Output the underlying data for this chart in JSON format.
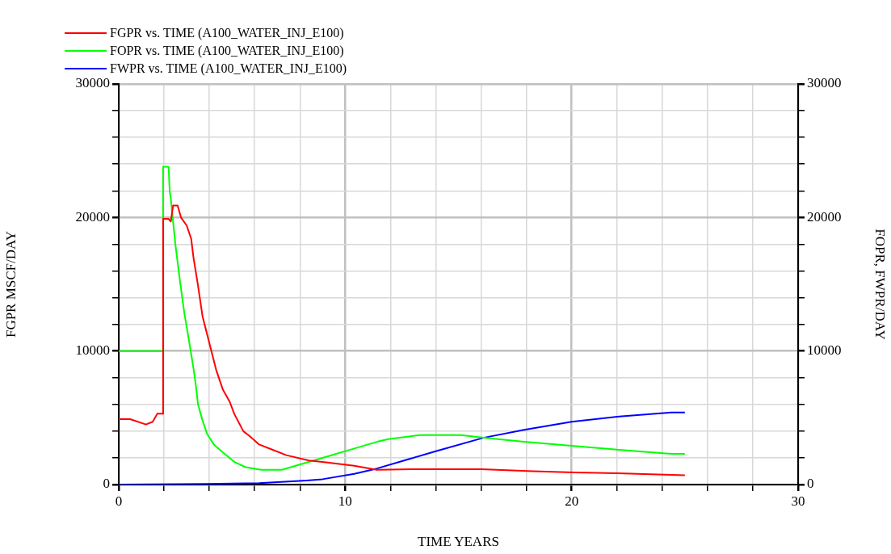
{
  "chart_data": {
    "type": "line",
    "xlabel": "TIME YEARS",
    "ylabel": "FGPR MSCF/DAY",
    "y2label": "FOPR, FWPR/DAY",
    "xlim": [
      0,
      30
    ],
    "xticks": [
      0,
      {
        "value": 2,
        "label": null
      },
      {
        "value": 4,
        "label": null
      },
      {
        "value": 6,
        "label": null
      },
      {
        "value": 8,
        "label": null
      },
      10,
      {
        "value": 12,
        "label": null
      },
      {
        "value": 14,
        "label": null
      },
      {
        "value": 16,
        "label": null
      },
      {
        "value": 18,
        "label": null
      },
      20,
      {
        "value": 22,
        "label": null
      },
      {
        "value": 24,
        "label": null
      },
      {
        "value": 26,
        "label": null
      },
      {
        "value": 28,
        "label": null
      },
      30
    ],
    "ylim": [
      0,
      30000
    ],
    "yticks": [
      0,
      {
        "value": 2000,
        "label": null
      },
      {
        "value": 4000,
        "label": null
      },
      {
        "value": 6000,
        "label": null
      },
      {
        "value": 8000,
        "label": null
      },
      10000,
      {
        "value": 12000,
        "label": null
      },
      {
        "value": 14000,
        "label": null
      },
      {
        "value": 16000,
        "label": null
      },
      {
        "value": 18000,
        "label": null
      },
      20000,
      {
        "value": 22000,
        "label": null
      },
      {
        "value": 24000,
        "label": null
      },
      {
        "value": 26000,
        "label": null
      },
      {
        "value": 28000,
        "label": null
      },
      30000
    ],
    "y2lim": [
      0,
      30000
    ],
    "y2ticks": [
      0,
      {
        "value": 2000,
        "label": null
      },
      {
        "value": 4000,
        "label": null
      },
      {
        "value": 6000,
        "label": null
      },
      {
        "value": 8000,
        "label": null
      },
      10000,
      {
        "value": 12000,
        "label": null
      },
      {
        "value": 14000,
        "label": null
      },
      {
        "value": 16000,
        "label": null
      },
      {
        "value": 18000,
        "label": null
      },
      20000,
      {
        "value": 22000,
        "label": null
      },
      {
        "value": 24000,
        "label": null
      },
      {
        "value": 26000,
        "label": null
      },
      {
        "value": 28000,
        "label": null
      },
      30000
    ],
    "grid": true,
    "legend": "top left",
    "marker": "none",
    "line_style": "solid",
    "series": [
      {
        "name": "FGPR vs. TIME (A100_WATER_INJ_E100)",
        "color": "#ff0000",
        "x": [
          0,
          0.5,
          1.2,
          1.5,
          1.7,
          1.96,
          1.96,
          2.2,
          2.3,
          2.4,
          2.6,
          2.75,
          3.0,
          3.2,
          3.3,
          3.5,
          3.7,
          4.0,
          4.3,
          4.6,
          4.9,
          5.1,
          5.5,
          5.8,
          6.2,
          6.8,
          7.4,
          8.4,
          9.0,
          10.4,
          11.4,
          13.0,
          16.0,
          18.3,
          20.1,
          22.0,
          25
        ],
        "values": [
          4900,
          4900,
          4500,
          4700,
          5300,
          5300,
          19900,
          19900,
          19700,
          20900,
          20900,
          20000,
          19400,
          18400,
          17000,
          14900,
          12600,
          10600,
          8600,
          7100,
          6200,
          5300,
          4000,
          3600,
          3000,
          2600,
          2200,
          1800,
          1700,
          1400,
          1100,
          1150,
          1150,
          1000,
          900,
          850,
          700
        ]
      },
      {
        "name": "FOPR vs. TIME (A100_WATER_INJ_E100)",
        "color": "#00ff00",
        "x": [
          0,
          1.96,
          1.96,
          2.2,
          2.25,
          2.3,
          2.5,
          2.7,
          2.9,
          3.1,
          3.3,
          3.4,
          3.5,
          3.7,
          3.9,
          4.2,
          4.6,
          5.1,
          5.6,
          6.3,
          7.2,
          9.0,
          10.4,
          11.4,
          11.9,
          13.3,
          15.1,
          16.2,
          17.9,
          20,
          22.1,
          24.4,
          25
        ],
        "values": [
          10000,
          10000,
          23800,
          23800,
          22000,
          21400,
          18000,
          15300,
          12800,
          10800,
          8700,
          7500,
          6000,
          4800,
          3800,
          3000,
          2400,
          1700,
          1300,
          1100,
          1100,
          2000,
          2700,
          3200,
          3400,
          3700,
          3700,
          3500,
          3200,
          2900,
          2600,
          2300,
          2300
        ]
      },
      {
        "name": "FWPR vs. TIME (A100_WATER_INJ_E100)",
        "color": "#0000ff",
        "x": [
          0,
          3.8,
          6.2,
          8.3,
          9.0,
          10.4,
          11.4,
          14.0,
          16.1,
          17.9,
          20,
          22.1,
          24.4,
          25
        ],
        "values": [
          0,
          50,
          100,
          300,
          400,
          800,
          1200,
          2500,
          3500,
          4100,
          4700,
          5100,
          5400,
          5400
        ]
      }
    ]
  }
}
